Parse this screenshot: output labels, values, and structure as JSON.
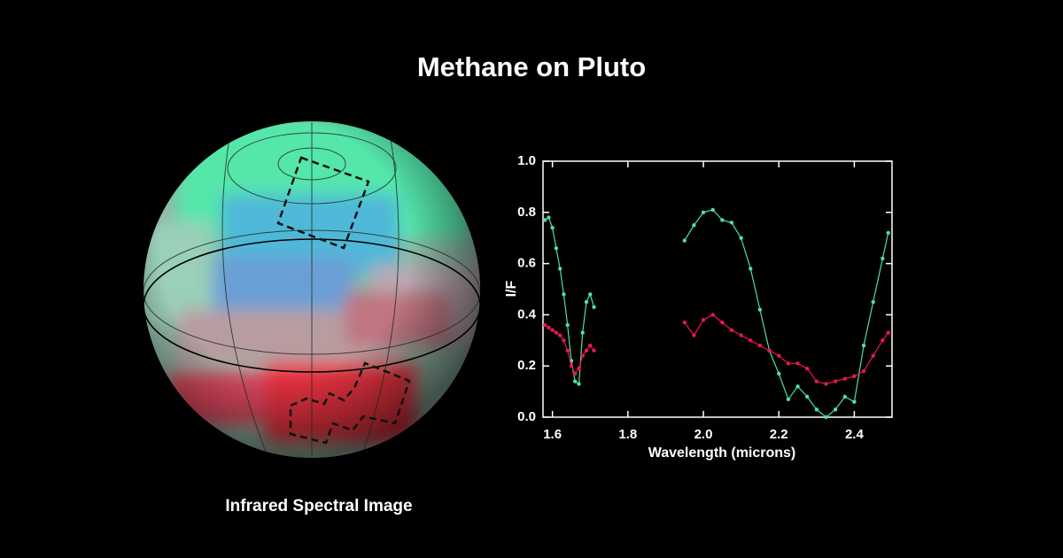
{
  "page": {
    "title": "Methane on Pluto",
    "caption": "Infrared Spectral Image"
  },
  "chart_data": {
    "type": "line",
    "xlabel": "Wavelength (microns)",
    "ylabel": "I/F",
    "x": [
      1.58,
      1.59,
      1.6,
      1.61,
      1.62,
      1.63,
      1.64,
      1.65,
      1.66,
      1.67,
      1.68,
      1.69,
      1.7,
      1.71,
      1.8,
      1.95,
      1.975,
      2.0,
      2.025,
      2.05,
      2.075,
      2.1,
      2.125,
      2.15,
      2.175,
      2.2,
      2.225,
      2.25,
      2.275,
      2.3,
      2.325,
      2.35,
      2.375,
      2.4,
      2.425,
      2.45,
      2.475,
      2.49
    ],
    "series": [
      {
        "color": "#4fe0a0",
        "values": [
          0.77,
          0.78,
          0.74,
          0.66,
          0.58,
          0.48,
          0.36,
          0.22,
          0.14,
          0.13,
          0.33,
          0.45,
          0.48,
          0.43,
          null,
          0.69,
          0.75,
          0.8,
          0.81,
          0.77,
          0.76,
          0.7,
          0.58,
          0.42,
          0.26,
          0.17,
          0.07,
          0.12,
          0.08,
          0.03,
          0.0,
          0.03,
          0.08,
          0.06,
          0.28,
          0.45,
          0.62,
          0.72
        ]
      },
      {
        "color": "#e8184c",
        "values": [
          0.36,
          0.35,
          0.34,
          0.33,
          0.32,
          0.3,
          0.26,
          0.2,
          0.17,
          0.19,
          0.24,
          0.26,
          0.28,
          0.26,
          null,
          0.37,
          0.32,
          0.38,
          0.4,
          0.37,
          0.34,
          0.32,
          0.3,
          0.28,
          0.26,
          0.24,
          0.21,
          0.21,
          0.19,
          0.14,
          0.13,
          0.14,
          0.15,
          0.16,
          0.18,
          0.24,
          0.3,
          0.33
        ]
      }
    ],
    "xlim": [
      1.575,
      2.5
    ],
    "ylim": [
      0,
      1
    ],
    "xticks": [
      1.6,
      1.8,
      {
        "value": 2,
        "label": "2.0"
      },
      2.2,
      2.4
    ],
    "yticks": [
      {
        "value": 0,
        "label": "0.0"
      },
      0.2,
      0.4,
      0.6,
      0.8,
      {
        "value": 1,
        "label": "1.0"
      }
    ]
  }
}
